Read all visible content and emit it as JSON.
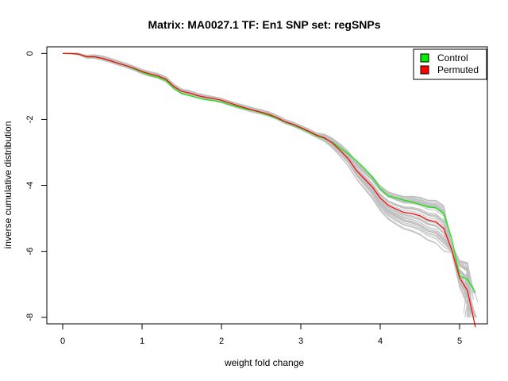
{
  "chart_data": {
    "type": "line",
    "title": "Matrix: MA0027.1 TF: En1 SNP set: regSNPs",
    "xlabel": "weight fold change",
    "ylabel": "inverse cumulative distribution",
    "xlim": [
      -0.2,
      5.35
    ],
    "ylim": [
      -8.2,
      0.2
    ],
    "xticks": [
      0,
      1,
      2,
      3,
      4,
      5
    ],
    "yticks": [
      0,
      -2,
      -4,
      -6,
      -8
    ],
    "grid": false,
    "legend_position": "top-right",
    "colors": {
      "control": "#00ee00",
      "permuted": "#ff0000",
      "background_series": "#c0c0c0"
    },
    "legend": [
      {
        "label": "Control",
        "color": "#00ee00"
      },
      {
        "label": "Permuted",
        "color": "#ff0000"
      }
    ],
    "series": [
      {
        "name": "Control",
        "color": "#00ee00",
        "x": [
          0,
          0.1,
          0.2,
          0.3,
          0.4,
          0.5,
          0.6,
          0.7,
          0.8,
          0.9,
          1.0,
          1.1,
          1.2,
          1.3,
          1.4,
          1.5,
          1.6,
          1.7,
          1.8,
          1.9,
          2.0,
          2.1,
          2.2,
          2.3,
          2.4,
          2.5,
          2.6,
          2.7,
          2.8,
          2.9,
          3.0,
          3.1,
          3.2,
          3.3,
          3.4,
          3.5,
          3.6,
          3.7,
          3.8,
          3.9,
          4.0,
          4.1,
          4.2,
          4.3,
          4.4,
          4.5,
          4.6,
          4.7,
          4.8,
          4.9,
          5.0,
          5.1,
          5.2
        ],
        "y": [
          0,
          0,
          -0.02,
          -0.1,
          -0.1,
          -0.15,
          -0.22,
          -0.3,
          -0.37,
          -0.47,
          -0.57,
          -0.67,
          -0.72,
          -0.82,
          -1.05,
          -1.22,
          -1.28,
          -1.35,
          -1.4,
          -1.43,
          -1.47,
          -1.55,
          -1.62,
          -1.68,
          -1.73,
          -1.8,
          -1.88,
          -1.97,
          -2.08,
          -2.17,
          -2.27,
          -2.38,
          -2.5,
          -2.58,
          -2.7,
          -2.88,
          -3.05,
          -3.25,
          -3.48,
          -3.75,
          -4.1,
          -4.32,
          -4.38,
          -4.45,
          -4.5,
          -4.58,
          -4.65,
          -4.68,
          -4.85,
          -5.6,
          -6.75,
          -6.85,
          -7.25
        ]
      },
      {
        "name": "Permuted",
        "color": "#ff0000",
        "x": [
          0,
          0.1,
          0.2,
          0.3,
          0.4,
          0.5,
          0.6,
          0.7,
          0.8,
          0.9,
          1.0,
          1.1,
          1.2,
          1.3,
          1.4,
          1.5,
          1.6,
          1.7,
          1.8,
          1.9,
          2.0,
          2.1,
          2.2,
          2.3,
          2.4,
          2.5,
          2.6,
          2.7,
          2.8,
          2.9,
          3.0,
          3.1,
          3.2,
          3.3,
          3.4,
          3.5,
          3.6,
          3.7,
          3.8,
          3.9,
          4.0,
          4.1,
          4.2,
          4.3,
          4.4,
          4.5,
          4.6,
          4.7,
          4.8,
          4.9,
          5.0,
          5.1,
          5.2
        ],
        "y": [
          0,
          0,
          -0.02,
          -0.1,
          -0.1,
          -0.15,
          -0.22,
          -0.3,
          -0.37,
          -0.45,
          -0.55,
          -0.62,
          -0.68,
          -0.78,
          -1.0,
          -1.15,
          -1.2,
          -1.28,
          -1.33,
          -1.37,
          -1.42,
          -1.5,
          -1.58,
          -1.65,
          -1.72,
          -1.78,
          -1.85,
          -1.95,
          -2.07,
          -2.15,
          -2.25,
          -2.36,
          -2.48,
          -2.56,
          -2.72,
          -2.95,
          -3.2,
          -3.55,
          -3.8,
          -4.05,
          -4.38,
          -4.6,
          -4.72,
          -4.82,
          -4.85,
          -4.92,
          -5.05,
          -5.1,
          -5.3,
          -5.95,
          -6.8,
          -7.2,
          -8.3
        ]
      }
    ]
  }
}
